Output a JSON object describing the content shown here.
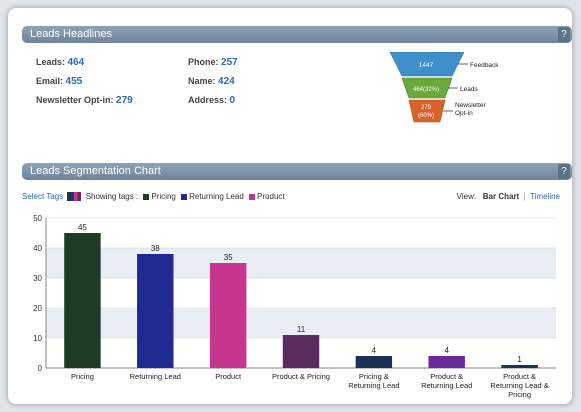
{
  "headlines": {
    "title": "Leads Headlines",
    "help": "?",
    "stats": [
      {
        "label": "Leads:",
        "value": "464"
      },
      {
        "label": "Email:",
        "value": "455"
      },
      {
        "label": "Newsletter Opt-in:",
        "value": "279"
      },
      {
        "label": "Phone:",
        "value": "257"
      },
      {
        "label": "Name:",
        "value": "424"
      },
      {
        "label": "Address:",
        "value": "0"
      }
    ],
    "funnel": [
      {
        "value": "1447",
        "label": "Feedback",
        "color": "#3f8fcc"
      },
      {
        "value": "464(32%)",
        "label": "Leads",
        "color": "#6aa83a"
      },
      {
        "value": "279 (60%)",
        "label": "Newsletter Opt-in",
        "color": "#d9622b"
      }
    ]
  },
  "segmentation": {
    "title": "Leads Segmentation Chart",
    "help": "?",
    "select_tags": "Select Tags",
    "showing_tags": "Showing tags :",
    "tags": [
      {
        "name": "Pricing",
        "color": "#1f3a25"
      },
      {
        "name": "Returning Lead",
        "color": "#1f2a92"
      },
      {
        "name": "Product",
        "color": "#c8358f"
      }
    ],
    "view_label": "View:",
    "view_active": "Bar Chart",
    "view_separator": "|",
    "view_alt": "Timeline"
  },
  "chart_data": {
    "type": "bar",
    "categories": [
      "Pricing",
      "Returning Lead",
      "Product",
      "Product & Pricing",
      "Pricing & Returning Lead",
      "Product & Returning Lead",
      "Product & Returning Lead & Pricing"
    ],
    "category_lines": [
      [
        "Pricing"
      ],
      [
        "Returning Lead"
      ],
      [
        "Product"
      ],
      [
        "Product & Pricing"
      ],
      [
        "Pricing &",
        "Returning Lead"
      ],
      [
        "Product &",
        "Returning Lead"
      ],
      [
        "Product &",
        "Returning Lead &",
        "Pricing"
      ]
    ],
    "values": [
      45,
      38,
      35,
      11,
      4,
      4,
      1
    ],
    "colors": [
      "#1f3a25",
      "#1f2a92",
      "#c8358f",
      "#5b2a5e",
      "#1d3057",
      "#6a2a9e",
      "#1d3057"
    ],
    "ylim": [
      0,
      50
    ],
    "yticks": [
      0,
      10,
      20,
      30,
      40,
      50
    ],
    "grid": true
  }
}
